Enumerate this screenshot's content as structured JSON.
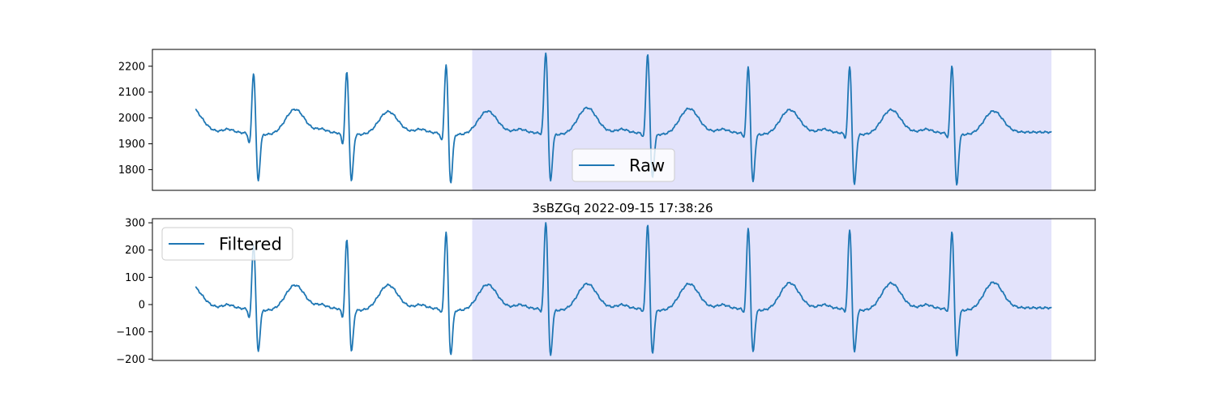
{
  "chart_data": [
    {
      "type": "line",
      "title": "",
      "xlabel": "",
      "ylabel": "",
      "ylim": [
        1720,
        2265
      ],
      "yticks": [
        1800,
        1900,
        2000,
        2100,
        2200
      ],
      "ytick_labels": [
        "1800",
        "1900",
        "2000",
        "2100",
        "2200"
      ],
      "xlim": [
        0,
        1.0
      ],
      "x_axis_ticks_visible": false,
      "grid": false,
      "highlight_region": {
        "x_start": 0.3234,
        "x_end": 1.0,
        "color": "#e3e3fb"
      },
      "legend": {
        "placement": "lower-center",
        "entries": [
          "Raw"
        ]
      },
      "series": [
        {
          "name": "Raw",
          "color": "#1f77b4",
          "baseline": 1945,
          "beats": [
            {
              "r_time": 0.0681,
              "r_peak": 2170,
              "s_trough": 1770,
              "q_trough": 1880,
              "t_peak": 2037
            },
            {
              "r_time": 0.177,
              "r_peak": 2173,
              "s_trough": 1768,
              "q_trough": 1877,
              "t_peak": 2028
            },
            {
              "r_time": 0.293,
              "r_peak": 2200,
              "s_trough": 1760,
              "q_trough": 1888,
              "t_peak": 2030
            },
            {
              "r_time": 0.4095,
              "r_peak": 2245,
              "s_trough": 1765,
              "q_trough": 1928,
              "t_peak": 2043
            },
            {
              "r_time": 0.5285,
              "r_peak": 2240,
              "s_trough": 1778,
              "q_trough": 1910,
              "t_peak": 2040
            },
            {
              "r_time": 0.646,
              "r_peak": 2190,
              "s_trough": 1762,
              "q_trough": 1910,
              "t_peak": 2035
            },
            {
              "r_time": 0.7645,
              "r_peak": 2193,
              "s_trough": 1752,
              "q_trough": 1905,
              "t_peak": 2035
            },
            {
              "r_time": 0.884,
              "r_peak": 2197,
              "s_trough": 1750,
              "q_trough": 1908,
              "t_peak": 2030
            }
          ],
          "start_value": 2040,
          "end_value": 1930
        }
      ]
    },
    {
      "type": "line",
      "title": "3sBZGq 2022-09-15 17:38:26",
      "xlabel": "",
      "ylabel": "",
      "ylim": [
        -205,
        315
      ],
      "yticks": [
        -200,
        -100,
        0,
        100,
        200,
        300
      ],
      "ytick_labels": [
        "−200",
        "−100",
        "0",
        "100",
        "200",
        "300"
      ],
      "xlim": [
        0,
        1.0
      ],
      "x_axis_ticks_visible": false,
      "grid": false,
      "highlight_region": {
        "x_start": 0.3234,
        "x_end": 1.0,
        "color": "#e3e3fb"
      },
      "legend": {
        "placement": "upper-left",
        "entries": [
          "Filtered"
        ]
      },
      "series": [
        {
          "name": "Filtered",
          "color": "#1f77b4",
          "baseline": -12,
          "beats": [
            {
              "r_time": 0.0681,
              "r_peak": 215,
              "s_trough": -158,
              "q_trough": -70,
              "t_peak": 75
            },
            {
              "r_time": 0.177,
              "r_peak": 230,
              "s_trough": -160,
              "q_trough": -68,
              "t_peak": 75
            },
            {
              "r_time": 0.293,
              "r_peak": 257,
              "s_trough": -172,
              "q_trough": -50,
              "t_peak": 77
            },
            {
              "r_time": 0.4095,
              "r_peak": 295,
              "s_trough": -178,
              "q_trough": -40,
              "t_peak": 80
            },
            {
              "r_time": 0.5285,
              "r_peak": 285,
              "s_trough": -170,
              "q_trough": -40,
              "t_peak": 80
            },
            {
              "r_time": 0.646,
              "r_peak": 270,
              "s_trough": -165,
              "q_trough": -45,
              "t_peak": 83
            },
            {
              "r_time": 0.7645,
              "r_peak": 265,
              "s_trough": -165,
              "q_trough": -40,
              "t_peak": 82
            },
            {
              "r_time": 0.884,
              "r_peak": 260,
              "s_trough": -180,
              "q_trough": -38,
              "t_peak": 85
            }
          ],
          "start_value": 70,
          "end_value": -15
        }
      ]
    }
  ]
}
